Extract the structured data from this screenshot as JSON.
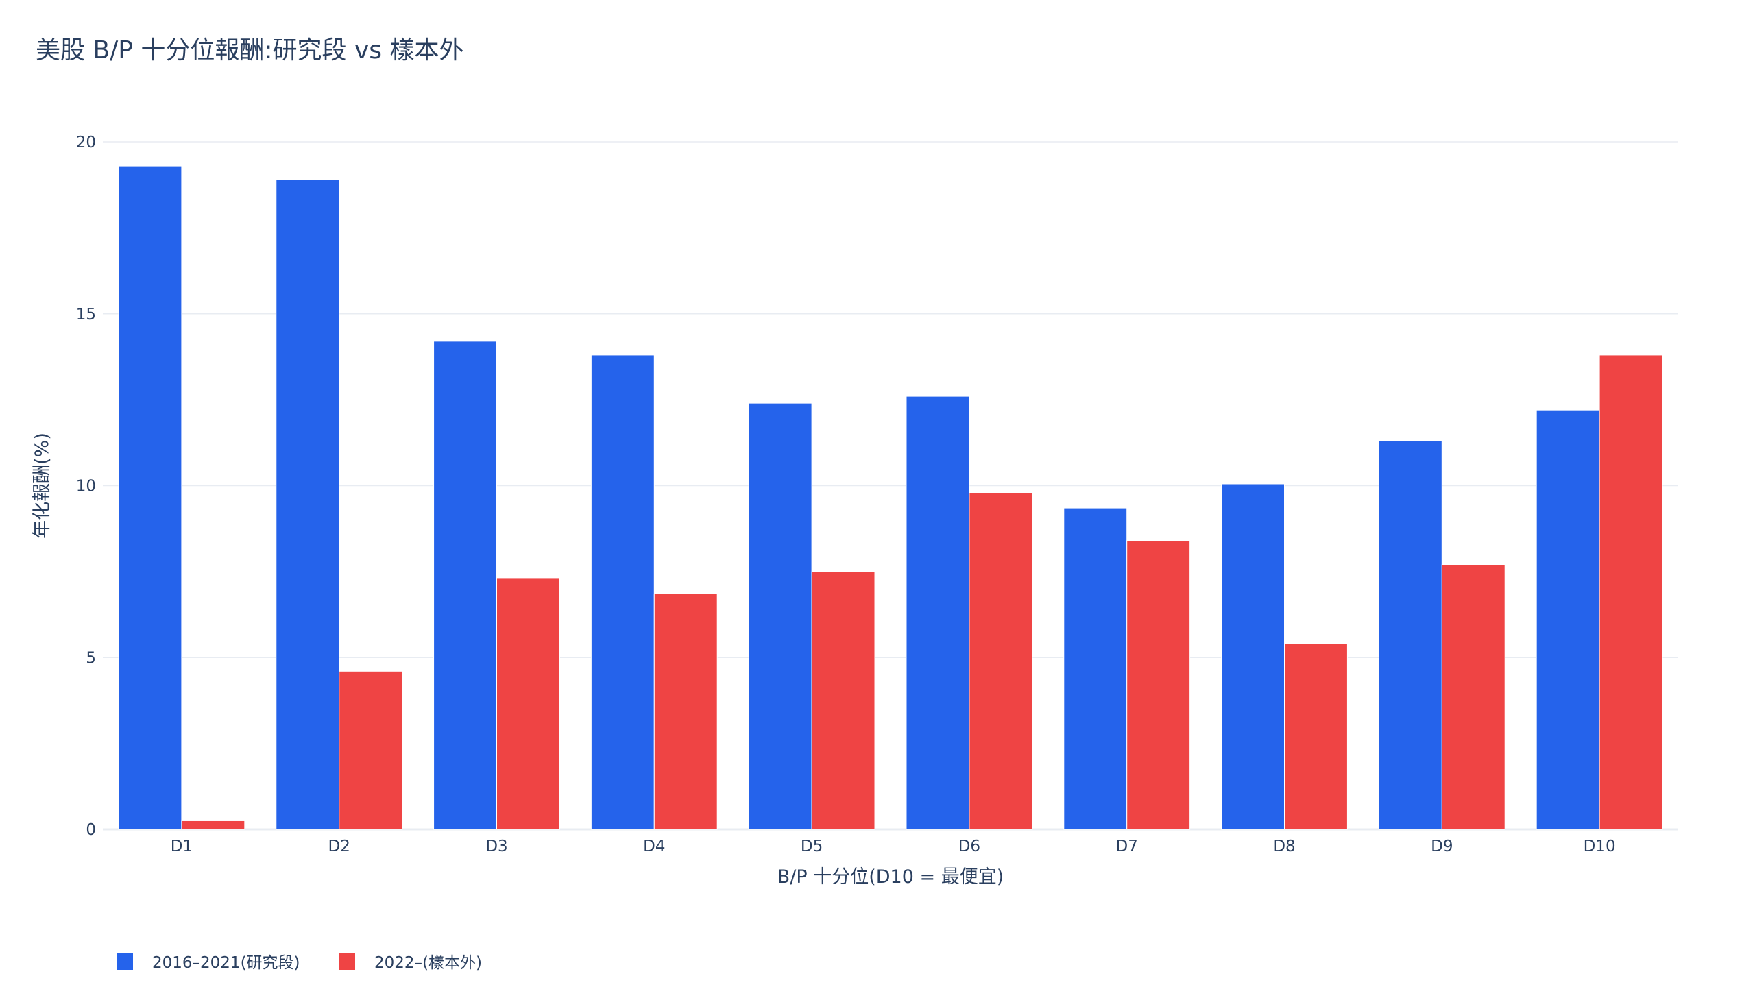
{
  "chart_data": {
    "type": "bar",
    "title": "美股 B/P 十分位報酬:研究段 vs 樣本外",
    "xlabel": "B/P 十分位(D10 = 最便宜)",
    "ylabel": "年化報酬(%)",
    "categories": [
      "D1",
      "D2",
      "D3",
      "D4",
      "D5",
      "D6",
      "D7",
      "D8",
      "D9",
      "D10"
    ],
    "ylim": [
      0,
      20
    ],
    "yticks": [
      0,
      5,
      10,
      15,
      20
    ],
    "grid": true,
    "legend_position": "bottom-left",
    "series": [
      {
        "name": "2016–2021(研究段)",
        "color": "#2563eb",
        "values": [
          19.3,
          18.9,
          14.2,
          13.8,
          12.4,
          12.6,
          9.35,
          10.05,
          11.3,
          12.2
        ]
      },
      {
        "name": "2022–(樣本外)",
        "color": "#ef4444",
        "values": [
          0.25,
          4.6,
          7.3,
          6.85,
          7.5,
          9.8,
          8.4,
          5.4,
          7.7,
          13.8
        ]
      }
    ]
  }
}
